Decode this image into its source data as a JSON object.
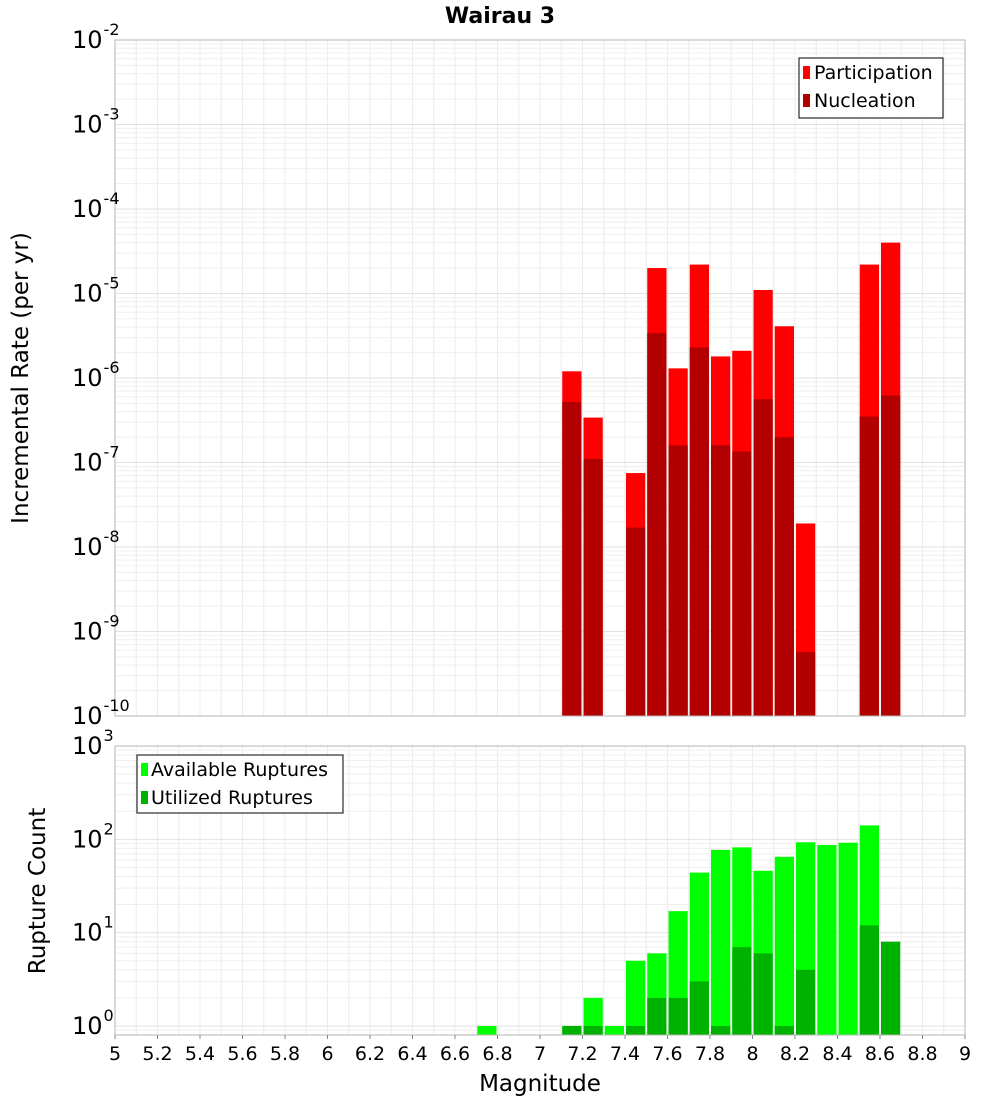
{
  "chart_data": [
    {
      "type": "bar",
      "title": "Wairau 3",
      "xlabel": "",
      "ylabel": "Incremental Rate (per yr)",
      "yscale": "log",
      "ylim": [
        1e-10,
        0.01
      ],
      "xlim": [
        5,
        9
      ],
      "grid": true,
      "legend_position": "top-right",
      "bar_mode": "overlaid",
      "y_ticks": [
        {
          "base": "10",
          "exp": "-2"
        },
        {
          "base": "10",
          "exp": "-3"
        },
        {
          "base": "10",
          "exp": "-4"
        },
        {
          "base": "10",
          "exp": "-5"
        },
        {
          "base": "10",
          "exp": "-6"
        },
        {
          "base": "10",
          "exp": "-7"
        },
        {
          "base": "10",
          "exp": "-8"
        },
        {
          "base": "10",
          "exp": "-9"
        },
        {
          "base": "10",
          "exp": "-10"
        }
      ],
      "series": [
        {
          "name": "Participation",
          "color": "#ff0000",
          "points": [
            {
              "x": 7.15,
              "y": 1.2e-06
            },
            {
              "x": 7.25,
              "y": 3.4e-07
            },
            {
              "x": 7.45,
              "y": 7.5e-08
            },
            {
              "x": 7.55,
              "y": 2e-05
            },
            {
              "x": 7.65,
              "y": 1.3e-06
            },
            {
              "x": 7.75,
              "y": 2.2e-05
            },
            {
              "x": 7.85,
              "y": 1.8e-06
            },
            {
              "x": 7.95,
              "y": 2.1e-06
            },
            {
              "x": 8.05,
              "y": 1.1e-05
            },
            {
              "x": 8.15,
              "y": 4.1e-06
            },
            {
              "x": 8.25,
              "y": 1.9e-08
            },
            {
              "x": 8.55,
              "y": 2.2e-05
            },
            {
              "x": 8.65,
              "y": 4e-05
            }
          ]
        },
        {
          "name": "Nucleation",
          "color": "#b20000",
          "points": [
            {
              "x": 7.15,
              "y": 5.2e-07
            },
            {
              "x": 7.25,
              "y": 1.1e-07
            },
            {
              "x": 7.45,
              "y": 1.7e-08
            },
            {
              "x": 7.55,
              "y": 3.4e-06
            },
            {
              "x": 7.65,
              "y": 1.6e-07
            },
            {
              "x": 7.75,
              "y": 2.3e-06
            },
            {
              "x": 7.85,
              "y": 1.6e-07
            },
            {
              "x": 7.95,
              "y": 1.35e-07
            },
            {
              "x": 8.05,
              "y": 5.6e-07
            },
            {
              "x": 8.15,
              "y": 2e-07
            },
            {
              "x": 8.25,
              "y": 5.7e-10
            },
            {
              "x": 8.55,
              "y": 3.5e-07
            },
            {
              "x": 8.65,
              "y": 6.2e-07
            }
          ]
        }
      ]
    },
    {
      "type": "bar",
      "title": "",
      "xlabel": "Magnitude",
      "ylabel": "Rupture Count",
      "yscale": "log",
      "ylim": [
        0.8,
        1000
      ],
      "xlim": [
        5,
        9
      ],
      "grid": true,
      "legend_position": "top-left",
      "bar_mode": "overlaid",
      "x_ticks": [
        "5",
        "5.2",
        "5.4",
        "5.6",
        "5.8",
        "6",
        "6.2",
        "6.4",
        "6.6",
        "6.8",
        "7",
        "7.2",
        "7.4",
        "7.6",
        "7.8",
        "8",
        "8.2",
        "8.4",
        "8.6",
        "8.8",
        "9"
      ],
      "y_ticks": [
        {
          "base": "10",
          "exp": "3"
        },
        {
          "base": "10",
          "exp": "2"
        },
        {
          "base": "10",
          "exp": "1"
        },
        {
          "base": "10",
          "exp": "0"
        }
      ],
      "series": [
        {
          "name": "Available Ruptures",
          "color": "#00ff00",
          "points": [
            {
              "x": 6.75,
              "y": 1
            },
            {
              "x": 7.15,
              "y": 1
            },
            {
              "x": 7.25,
              "y": 2
            },
            {
              "x": 7.35,
              "y": 1
            },
            {
              "x": 7.45,
              "y": 5
            },
            {
              "x": 7.55,
              "y": 6
            },
            {
              "x": 7.65,
              "y": 17
            },
            {
              "x": 7.75,
              "y": 44
            },
            {
              "x": 7.85,
              "y": 77
            },
            {
              "x": 7.95,
              "y": 82
            },
            {
              "x": 8.05,
              "y": 46
            },
            {
              "x": 8.15,
              "y": 65
            },
            {
              "x": 8.25,
              "y": 93
            },
            {
              "x": 8.35,
              "y": 87
            },
            {
              "x": 8.45,
              "y": 92
            },
            {
              "x": 8.55,
              "y": 141
            }
          ]
        },
        {
          "name": "Utilized Ruptures",
          "color": "#00b200",
          "points": [
            {
              "x": 7.15,
              "y": 1
            },
            {
              "x": 7.25,
              "y": 1
            },
            {
              "x": 7.45,
              "y": 1
            },
            {
              "x": 7.55,
              "y": 2
            },
            {
              "x": 7.65,
              "y": 2
            },
            {
              "x": 7.75,
              "y": 3
            },
            {
              "x": 7.85,
              "y": 1
            },
            {
              "x": 7.95,
              "y": 7
            },
            {
              "x": 8.05,
              "y": 6
            },
            {
              "x": 8.15,
              "y": 1
            },
            {
              "x": 8.25,
              "y": 4
            },
            {
              "x": 8.55,
              "y": 12
            },
            {
              "x": 8.65,
              "y": 8
            }
          ]
        }
      ]
    }
  ]
}
